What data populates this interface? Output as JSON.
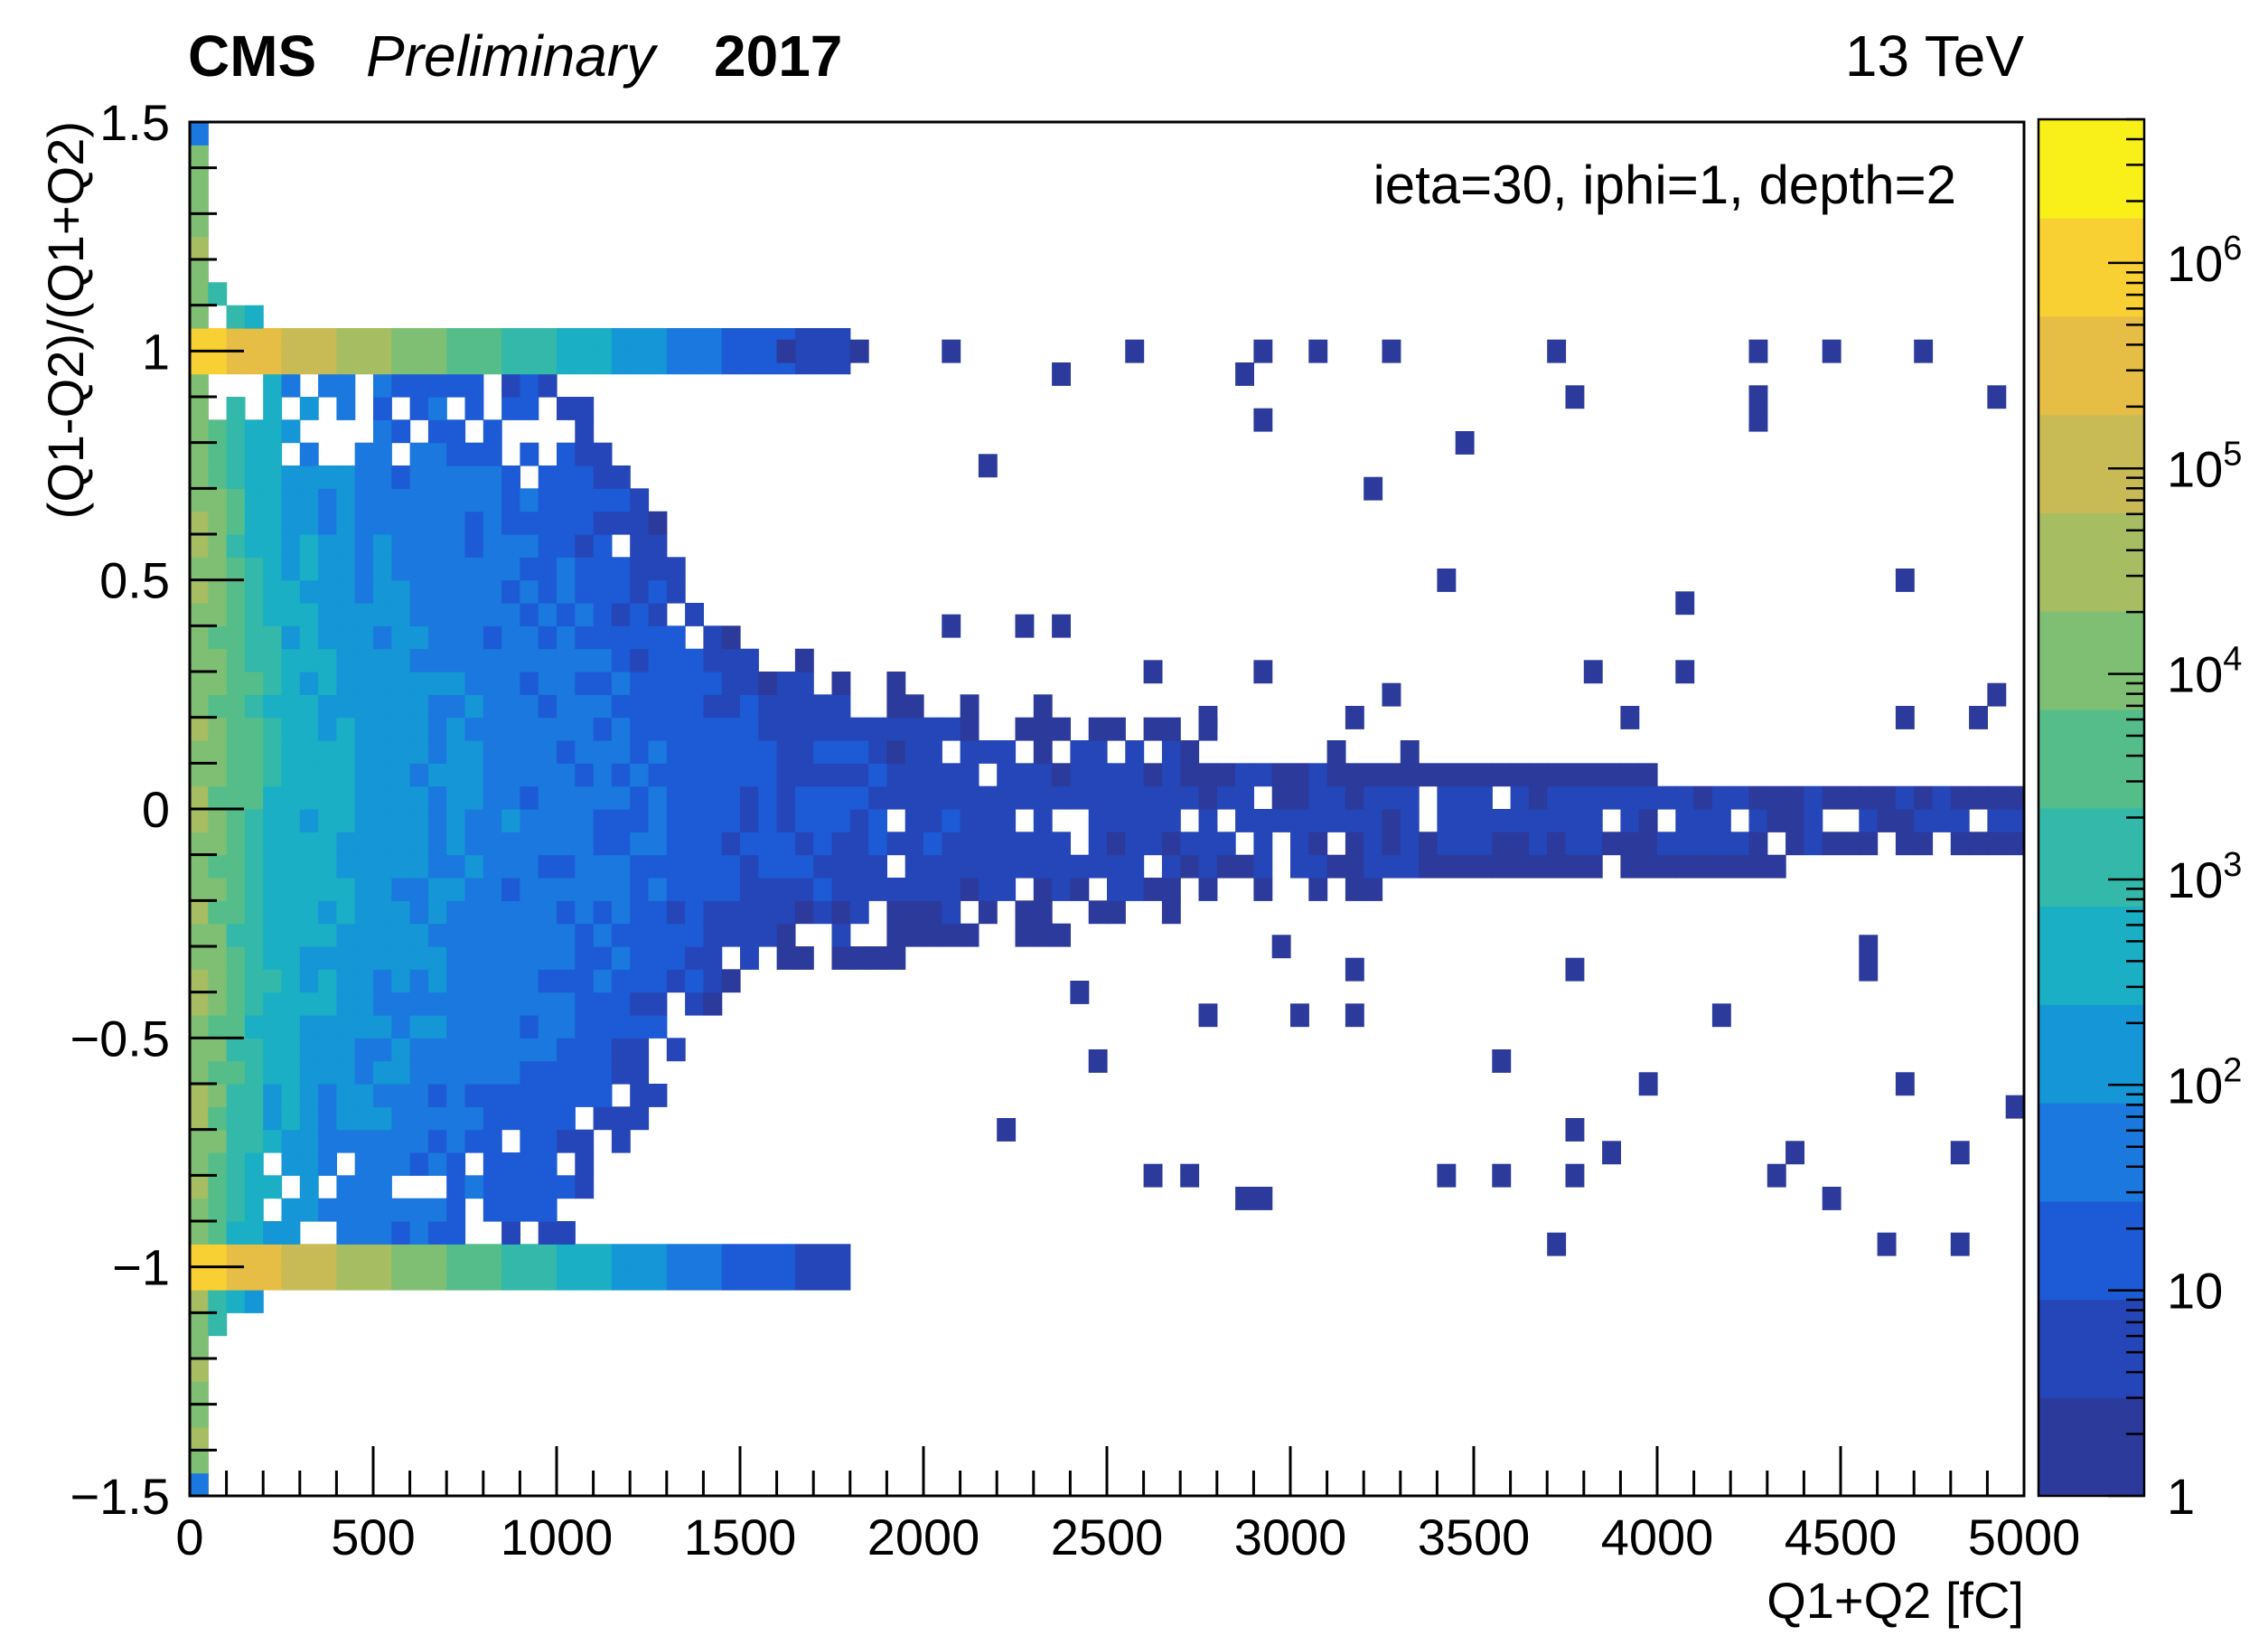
{
  "header": {
    "experiment": "CMS",
    "status": "Preliminary",
    "year": "2017",
    "energy": "13 TeV"
  },
  "chart_data": {
    "type": "heatmap",
    "annotation": "ieta=30, iphi=1, depth=2",
    "xlabel": "Q1+Q2 [fC]",
    "ylabel": "(Q1-Q2)/(Q1+Q2)",
    "xlim": [
      0,
      5000
    ],
    "ylim": [
      -1.5,
      1.5
    ],
    "x_ticks": [
      {
        "value": 0,
        "label": "0"
      },
      {
        "value": 500,
        "label": "500"
      },
      {
        "value": 1000,
        "label": "1000"
      },
      {
        "value": 1500,
        "label": "1500"
      },
      {
        "value": 2000,
        "label": "2000"
      },
      {
        "value": 2500,
        "label": "2500"
      },
      {
        "value": 3000,
        "label": "3000"
      },
      {
        "value": 3500,
        "label": "3500"
      },
      {
        "value": 4000,
        "label": "4000"
      },
      {
        "value": 4500,
        "label": "4500"
      },
      {
        "value": 5000,
        "label": "5000"
      }
    ],
    "y_ticks": [
      {
        "value": 1.5,
        "label": "1.5"
      },
      {
        "value": 1,
        "label": "1"
      },
      {
        "value": 0.5,
        "label": "0.5"
      },
      {
        "value": 0,
        "label": "0"
      },
      {
        "value": -0.5,
        "label": "−0.5"
      },
      {
        "value": -1,
        "label": "−1"
      },
      {
        "value": -1.5,
        "label": "−1.5"
      }
    ],
    "z_scale": "log",
    "zlim": [
      1,
      5000000
    ],
    "z_ticks": [
      {
        "value": 1,
        "base": "1",
        "exp": ""
      },
      {
        "value": 10,
        "base": "10",
        "exp": ""
      },
      {
        "value": 100,
        "base": "10",
        "exp": "2"
      },
      {
        "value": 1000,
        "base": "10",
        "exp": "3"
      },
      {
        "value": 10000,
        "base": "10",
        "exp": "4"
      },
      {
        "value": 100000,
        "base": "10",
        "exp": "5"
      },
      {
        "value": 1000000,
        "base": "10",
        "exp": "6"
      }
    ],
    "palette": [
      "#2b3a9b",
      "#2546b8",
      "#1d5ad6",
      "#1a78de",
      "#1596d6",
      "#1aafc4",
      "#33b8aa",
      "#55bd8a",
      "#7fbf73",
      "#a6bd62",
      "#c8bb55",
      "#e6bd45",
      "#f9d033",
      "#f9f01a"
    ],
    "grid": false,
    "bins": {
      "x_edges_step": 50,
      "y_edges_step": 0.05,
      "dense_band": [
        {
          "x": 0,
          "count": 40000,
          "y_lo": -1.2,
          "y_hi": 1.2
        },
        {
          "x": 250,
          "count": 500,
          "y_lo": -1.0,
          "y_hi": 1.0
        },
        {
          "x": 500,
          "count": 150,
          "y_lo": -1.0,
          "y_hi": 1.0
        },
        {
          "x": 1000,
          "count": 40,
          "y_lo": -0.95,
          "y_hi": 0.95
        },
        {
          "x": 1500,
          "count": 15,
          "y_lo": -0.35,
          "y_hi": 0.35
        },
        {
          "x": 2000,
          "count": 8,
          "y_lo": -0.3,
          "y_hi": 0.25
        },
        {
          "x": 3000,
          "count": 5,
          "y_lo": -0.2,
          "y_hi": 0.15
        },
        {
          "x": 4000,
          "count": 5,
          "y_lo": -0.15,
          "y_hi": 0.1
        },
        {
          "x": 5000,
          "count": 4,
          "y_lo": -0.1,
          "y_hi": 0.05
        }
      ],
      "ridges": [
        {
          "y": 1.0,
          "count_at_x0": 1000000
        },
        {
          "y": -1.0,
          "count_at_x0": 1000000
        }
      ],
      "outliers": [
        [
          1600,
          1.0
        ],
        [
          1800,
          1.0
        ],
        [
          2050,
          1.0
        ],
        [
          2550,
          1.0
        ],
        [
          2900,
          1.0
        ],
        [
          3050,
          1.0
        ],
        [
          3250,
          1.0
        ],
        [
          3700,
          1.0
        ],
        [
          4250,
          1.0
        ],
        [
          4450,
          1.0
        ],
        [
          4700,
          1.0
        ],
        [
          2350,
          0.95
        ],
        [
          2850,
          0.95
        ],
        [
          4250,
          0.9
        ],
        [
          4900,
          0.9
        ],
        [
          3750,
          0.9
        ],
        [
          2900,
          0.85
        ],
        [
          3450,
          0.8
        ],
        [
          4250,
          0.85
        ],
        [
          2150,
          0.75
        ],
        [
          3200,
          0.7
        ],
        [
          3400,
          0.5
        ],
        [
          4050,
          0.45
        ],
        [
          4650,
          0.5
        ],
        [
          2050,
          0.4
        ],
        [
          2250,
          0.4
        ],
        [
          2350,
          0.4
        ],
        [
          2600,
          0.3
        ],
        [
          2900,
          0.3
        ],
        [
          3250,
          0.25
        ],
        [
          3800,
          0.3
        ],
        [
          4050,
          0.3
        ],
        [
          4900,
          0.25
        ],
        [
          2750,
          0.2
        ],
        [
          3150,
          0.2
        ],
        [
          3900,
          0.2
        ],
        [
          4650,
          0.2
        ],
        [
          4850,
          0.2
        ],
        [
          2950,
          -0.3
        ],
        [
          3150,
          -0.35
        ],
        [
          3750,
          -0.35
        ],
        [
          4550,
          -0.3
        ],
        [
          4550,
          -0.35
        ],
        [
          2400,
          -0.4
        ],
        [
          2750,
          -0.45
        ],
        [
          3000,
          -0.45
        ],
        [
          3150,
          -0.45
        ],
        [
          4150,
          -0.45
        ],
        [
          2450,
          -0.55
        ],
        [
          3550,
          -0.55
        ],
        [
          3950,
          -0.6
        ],
        [
          4650,
          -0.6
        ],
        [
          4950,
          -0.65
        ],
        [
          2200,
          -0.7
        ],
        [
          3750,
          -0.7
        ],
        [
          3850,
          -0.75
        ],
        [
          4350,
          -0.75
        ],
        [
          4800,
          -0.75
        ],
        [
          2600,
          -0.8
        ],
        [
          2700,
          -0.8
        ],
        [
          3400,
          -0.8
        ],
        [
          3550,
          -0.8
        ],
        [
          3750,
          -0.8
        ],
        [
          4300,
          -0.8
        ],
        [
          2850,
          -0.85
        ],
        [
          2900,
          -0.85
        ],
        [
          4450,
          -0.85
        ],
        [
          3700,
          -0.95
        ],
        [
          4600,
          -0.95
        ],
        [
          4800,
          -0.95
        ]
      ]
    }
  }
}
